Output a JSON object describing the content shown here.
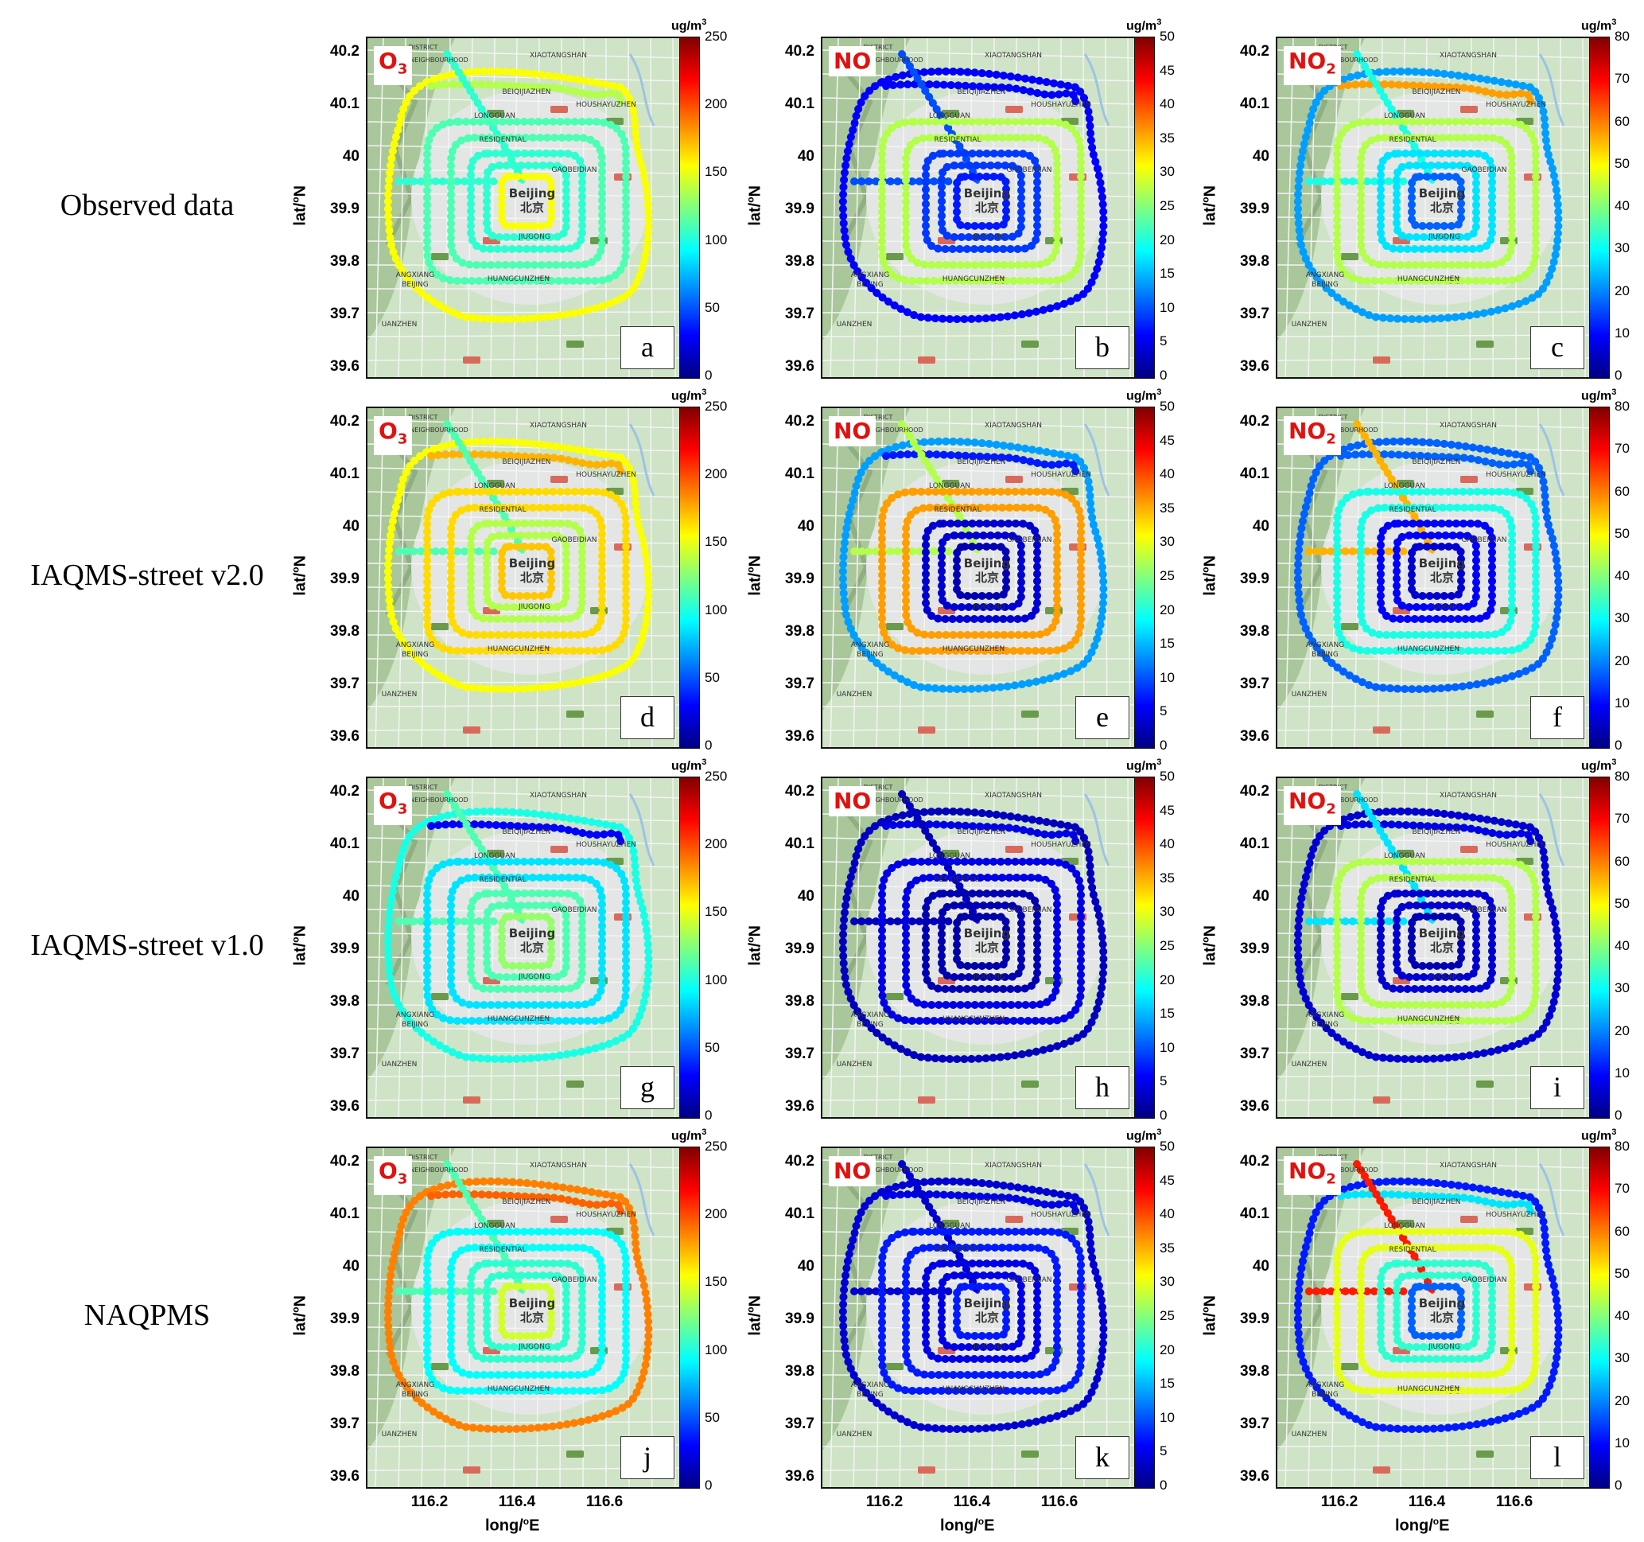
{
  "row_labels": [
    "Observed data",
    "IAQMS-street v2.0",
    "IAQMS-street v1.0",
    "NAQPMS"
  ],
  "columns": [
    {
      "pollutant": "O",
      "pollutant_sub": "3",
      "cb_max": 250,
      "cb_ticks": [
        "250",
        "200",
        "150",
        "100",
        "50",
        "0"
      ]
    },
    {
      "pollutant": "NO",
      "pollutant_sub": "",
      "cb_max": 50,
      "cb_ticks": [
        "50",
        "45",
        "40",
        "35",
        "30",
        "25",
        "20",
        "15",
        "10",
        "5",
        "0"
      ]
    },
    {
      "pollutant": "NO",
      "pollutant_sub": "2",
      "cb_max": 80,
      "cb_ticks": [
        "80",
        "70",
        "60",
        "50",
        "40",
        "30",
        "20",
        "10",
        "0"
      ]
    }
  ],
  "panel_letters": [
    [
      "a",
      "b",
      "c"
    ],
    [
      "d",
      "e",
      "f"
    ],
    [
      "g",
      "h",
      "i"
    ],
    [
      "j",
      "k",
      "l"
    ]
  ],
  "unit_label": "ug/m",
  "unit_sup": "3",
  "y_ticks": [
    "40.2",
    "40.1",
    "40",
    "39.9",
    "39.8",
    "39.7",
    "39.6"
  ],
  "x_ticks": [
    "116.2",
    "116.4",
    "116.6"
  ],
  "y_label": "lat/",
  "y_label_sup": "o",
  "y_label_tail": "N",
  "x_label": "long/",
  "x_label_sup": "o",
  "x_label_tail": "E",
  "map_labels": {
    "city_en": "Beijing",
    "city_zh": "北京",
    "places": [
      "DISTRICT",
      "XIAOTANGSHAN",
      "BEIQIJIAZHEN",
      "HOUSHAYUZHEN",
      "LONGGUAN",
      "RESIDENTIAL",
      "JIUGONG",
      "HUANGCUNZHEN",
      "ANGXIANG",
      "BEIJING",
      "UANZHEN",
      "NEIGHBOURHOOD",
      "GAOBEIDIAN"
    ]
  },
  "panel_values": {
    "0_0": {
      "outer": 0.62,
      "north": 0.55,
      "mid": 0.45,
      "inner": 0.42,
      "core": 0.62,
      "road": 0.42
    },
    "0_1": {
      "outer": 0.12,
      "north": 0.12,
      "mid": 0.55,
      "inner": 0.18,
      "core": 0.15,
      "road": 0.2
    },
    "0_2": {
      "outer": 0.28,
      "north": 0.72,
      "mid": 0.55,
      "inner": 0.35,
      "core": 0.22,
      "road": 0.4
    },
    "1_0": {
      "outer": 0.62,
      "north": 0.7,
      "mid": 0.66,
      "inner": 0.55,
      "core": 0.68,
      "road": 0.45
    },
    "1_1": {
      "outer": 0.28,
      "north": 0.15,
      "mid": 0.72,
      "inner": 0.08,
      "core": 0.05,
      "road": 0.55
    },
    "1_2": {
      "outer": 0.22,
      "north": 0.22,
      "mid": 0.4,
      "inner": 0.12,
      "core": 0.08,
      "road": 0.7
    },
    "2_0": {
      "outer": 0.4,
      "north": 0.12,
      "mid": 0.35,
      "inner": 0.45,
      "core": 0.52,
      "road": 0.45
    },
    "2_1": {
      "outer": 0.06,
      "north": 0.1,
      "mid": 0.1,
      "inner": 0.05,
      "core": 0.04,
      "road": 0.06
    },
    "2_2": {
      "outer": 0.08,
      "north": 0.1,
      "mid": 0.55,
      "inner": 0.08,
      "core": 0.05,
      "road": 0.35
    },
    "3_0": {
      "outer": 0.75,
      "north": 0.78,
      "mid": 0.38,
      "inner": 0.42,
      "core": 0.58,
      "road": 0.45
    },
    "3_1": {
      "outer": 0.08,
      "north": 0.1,
      "mid": 0.15,
      "inner": 0.1,
      "core": 0.15,
      "road": 0.08
    },
    "3_2": {
      "outer": 0.15,
      "north": 0.35,
      "mid": 0.6,
      "inner": 0.42,
      "core": 0.22,
      "road": 0.85
    }
  }
}
